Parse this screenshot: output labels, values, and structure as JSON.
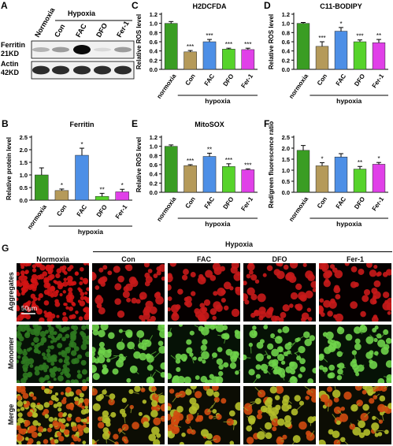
{
  "panel_a": {
    "letter": "A",
    "lanes": [
      "Normoxia",
      "Con",
      "FAC",
      "DFO",
      "Fer-1"
    ],
    "group_label": "Hypoxia",
    "rows": [
      {
        "name": "Ferritin",
        "size": "21KD",
        "intensity": [
          0.25,
          0.35,
          1.0,
          0.08,
          0.35
        ]
      },
      {
        "name": "Actin",
        "size": "42KD",
        "intensity": [
          0.85,
          0.85,
          0.85,
          0.85,
          0.85
        ]
      }
    ]
  },
  "chart_data": [
    {
      "panel": "B",
      "type": "bar",
      "title": "Ferritin",
      "ylabel": "Relative protein level",
      "ylim": [
        0,
        2.5
      ],
      "yticks": [
        0.0,
        0.5,
        1.0,
        1.5,
        2.0,
        2.5
      ],
      "categories": [
        "normoxia",
        "Con",
        "FAC",
        "DFO",
        "Fer-1"
      ],
      "values": [
        1.0,
        0.38,
        1.78,
        0.15,
        0.33
      ],
      "errors": [
        0.28,
        0.06,
        0.28,
        0.12,
        0.1
      ],
      "significance": [
        "",
        "*",
        "*",
        "**",
        "*"
      ],
      "group_label": "hypoxia"
    },
    {
      "panel": "C",
      "type": "bar",
      "title": "H2DCFDA",
      "ylabel": "Relative ROS level",
      "ylim": [
        0,
        1.2
      ],
      "yticks": [
        0.0,
        0.2,
        0.4,
        0.6,
        0.8,
        1.0,
        1.2
      ],
      "categories": [
        "normoxia",
        "Con",
        "FAC",
        "DFO",
        "Fer-1"
      ],
      "values": [
        1.0,
        0.38,
        0.6,
        0.44,
        0.43
      ],
      "errors": [
        0.04,
        0.03,
        0.05,
        0.02,
        0.03
      ],
      "significance": [
        "",
        "***",
        "***",
        "***",
        "***"
      ],
      "group_label": "hypoxia"
    },
    {
      "panel": "D",
      "type": "bar",
      "title": "C11-BODIPY",
      "ylabel": "Relative ROS level",
      "ylim": [
        0,
        1.2
      ],
      "yticks": [
        0.0,
        0.2,
        0.4,
        0.6,
        0.8,
        1.0,
        1.2
      ],
      "categories": [
        "normoxia",
        "Con",
        "FAC",
        "DFO",
        "Fer-1"
      ],
      "values": [
        1.0,
        0.5,
        0.83,
        0.6,
        0.58
      ],
      "errors": [
        0.02,
        0.1,
        0.08,
        0.04,
        0.07
      ],
      "significance": [
        "",
        "***",
        "*",
        "***",
        "**"
      ],
      "group_label": "hypoxia"
    },
    {
      "panel": "E",
      "type": "bar",
      "title": "MitoSOX",
      "ylabel": "Relative ROS level",
      "ylim": [
        0,
        1.2
      ],
      "yticks": [
        0.0,
        0.2,
        0.4,
        0.6,
        0.8,
        1.0,
        1.2
      ],
      "categories": [
        "normoxia",
        "Con",
        "FAC",
        "DFO",
        "Fer-1"
      ],
      "values": [
        1.0,
        0.58,
        0.78,
        0.56,
        0.49
      ],
      "errors": [
        0.03,
        0.02,
        0.07,
        0.06,
        0.02
      ],
      "significance": [
        "",
        "***",
        "**",
        "***",
        "***"
      ],
      "group_label": "hypoxia"
    },
    {
      "panel": "F",
      "type": "bar",
      "title": "",
      "ylabel": "Red/green fluorescence ratio",
      "ylim": [
        0,
        2.5
      ],
      "yticks": [
        0.0,
        0.5,
        1.0,
        1.5,
        2.0,
        2.5
      ],
      "categories": [
        "normoxia",
        "Con",
        "FAC",
        "DFO",
        "Fer-1"
      ],
      "values": [
        1.9,
        1.2,
        1.6,
        1.05,
        1.27
      ],
      "errors": [
        0.22,
        0.14,
        0.15,
        0.12,
        0.08
      ],
      "significance": [
        "",
        "*",
        "",
        "**",
        "*"
      ],
      "group_label": "hypoxia"
    }
  ],
  "bar_colors": [
    "#3a9d23",
    "#b59a5a",
    "#4d8fe6",
    "#56d32a",
    "#e040e8"
  ],
  "panel_g": {
    "letter": "G",
    "hypoxia_label": "Hypoxia",
    "columns": [
      "Normoxia",
      "Con",
      "FAC",
      "DFO",
      "Fer-1"
    ],
    "rows": [
      "Aggregates",
      "Monomer",
      "Merge"
    ],
    "scale_bar": "50μm"
  }
}
